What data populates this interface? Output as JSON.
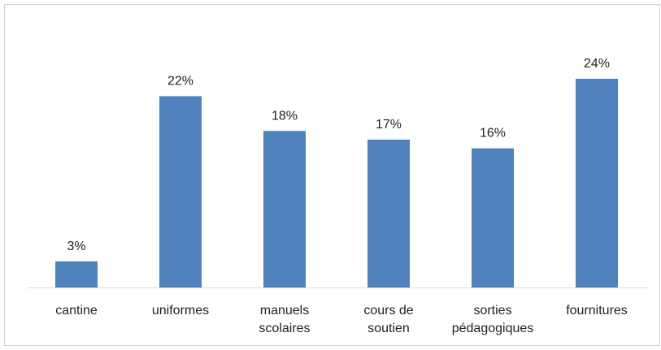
{
  "chart_data": {
    "type": "bar",
    "categories": [
      "cantine",
      "uniformes",
      "manuels scolaires",
      "cours de soutien",
      "sorties pédagogiques",
      "fournitures"
    ],
    "values": [
      3,
      22,
      18,
      17,
      16,
      24
    ],
    "value_labels": [
      "3%",
      "22%",
      "18%",
      "17%",
      "16%",
      "24%"
    ],
    "color": "#4f81bd"
  }
}
